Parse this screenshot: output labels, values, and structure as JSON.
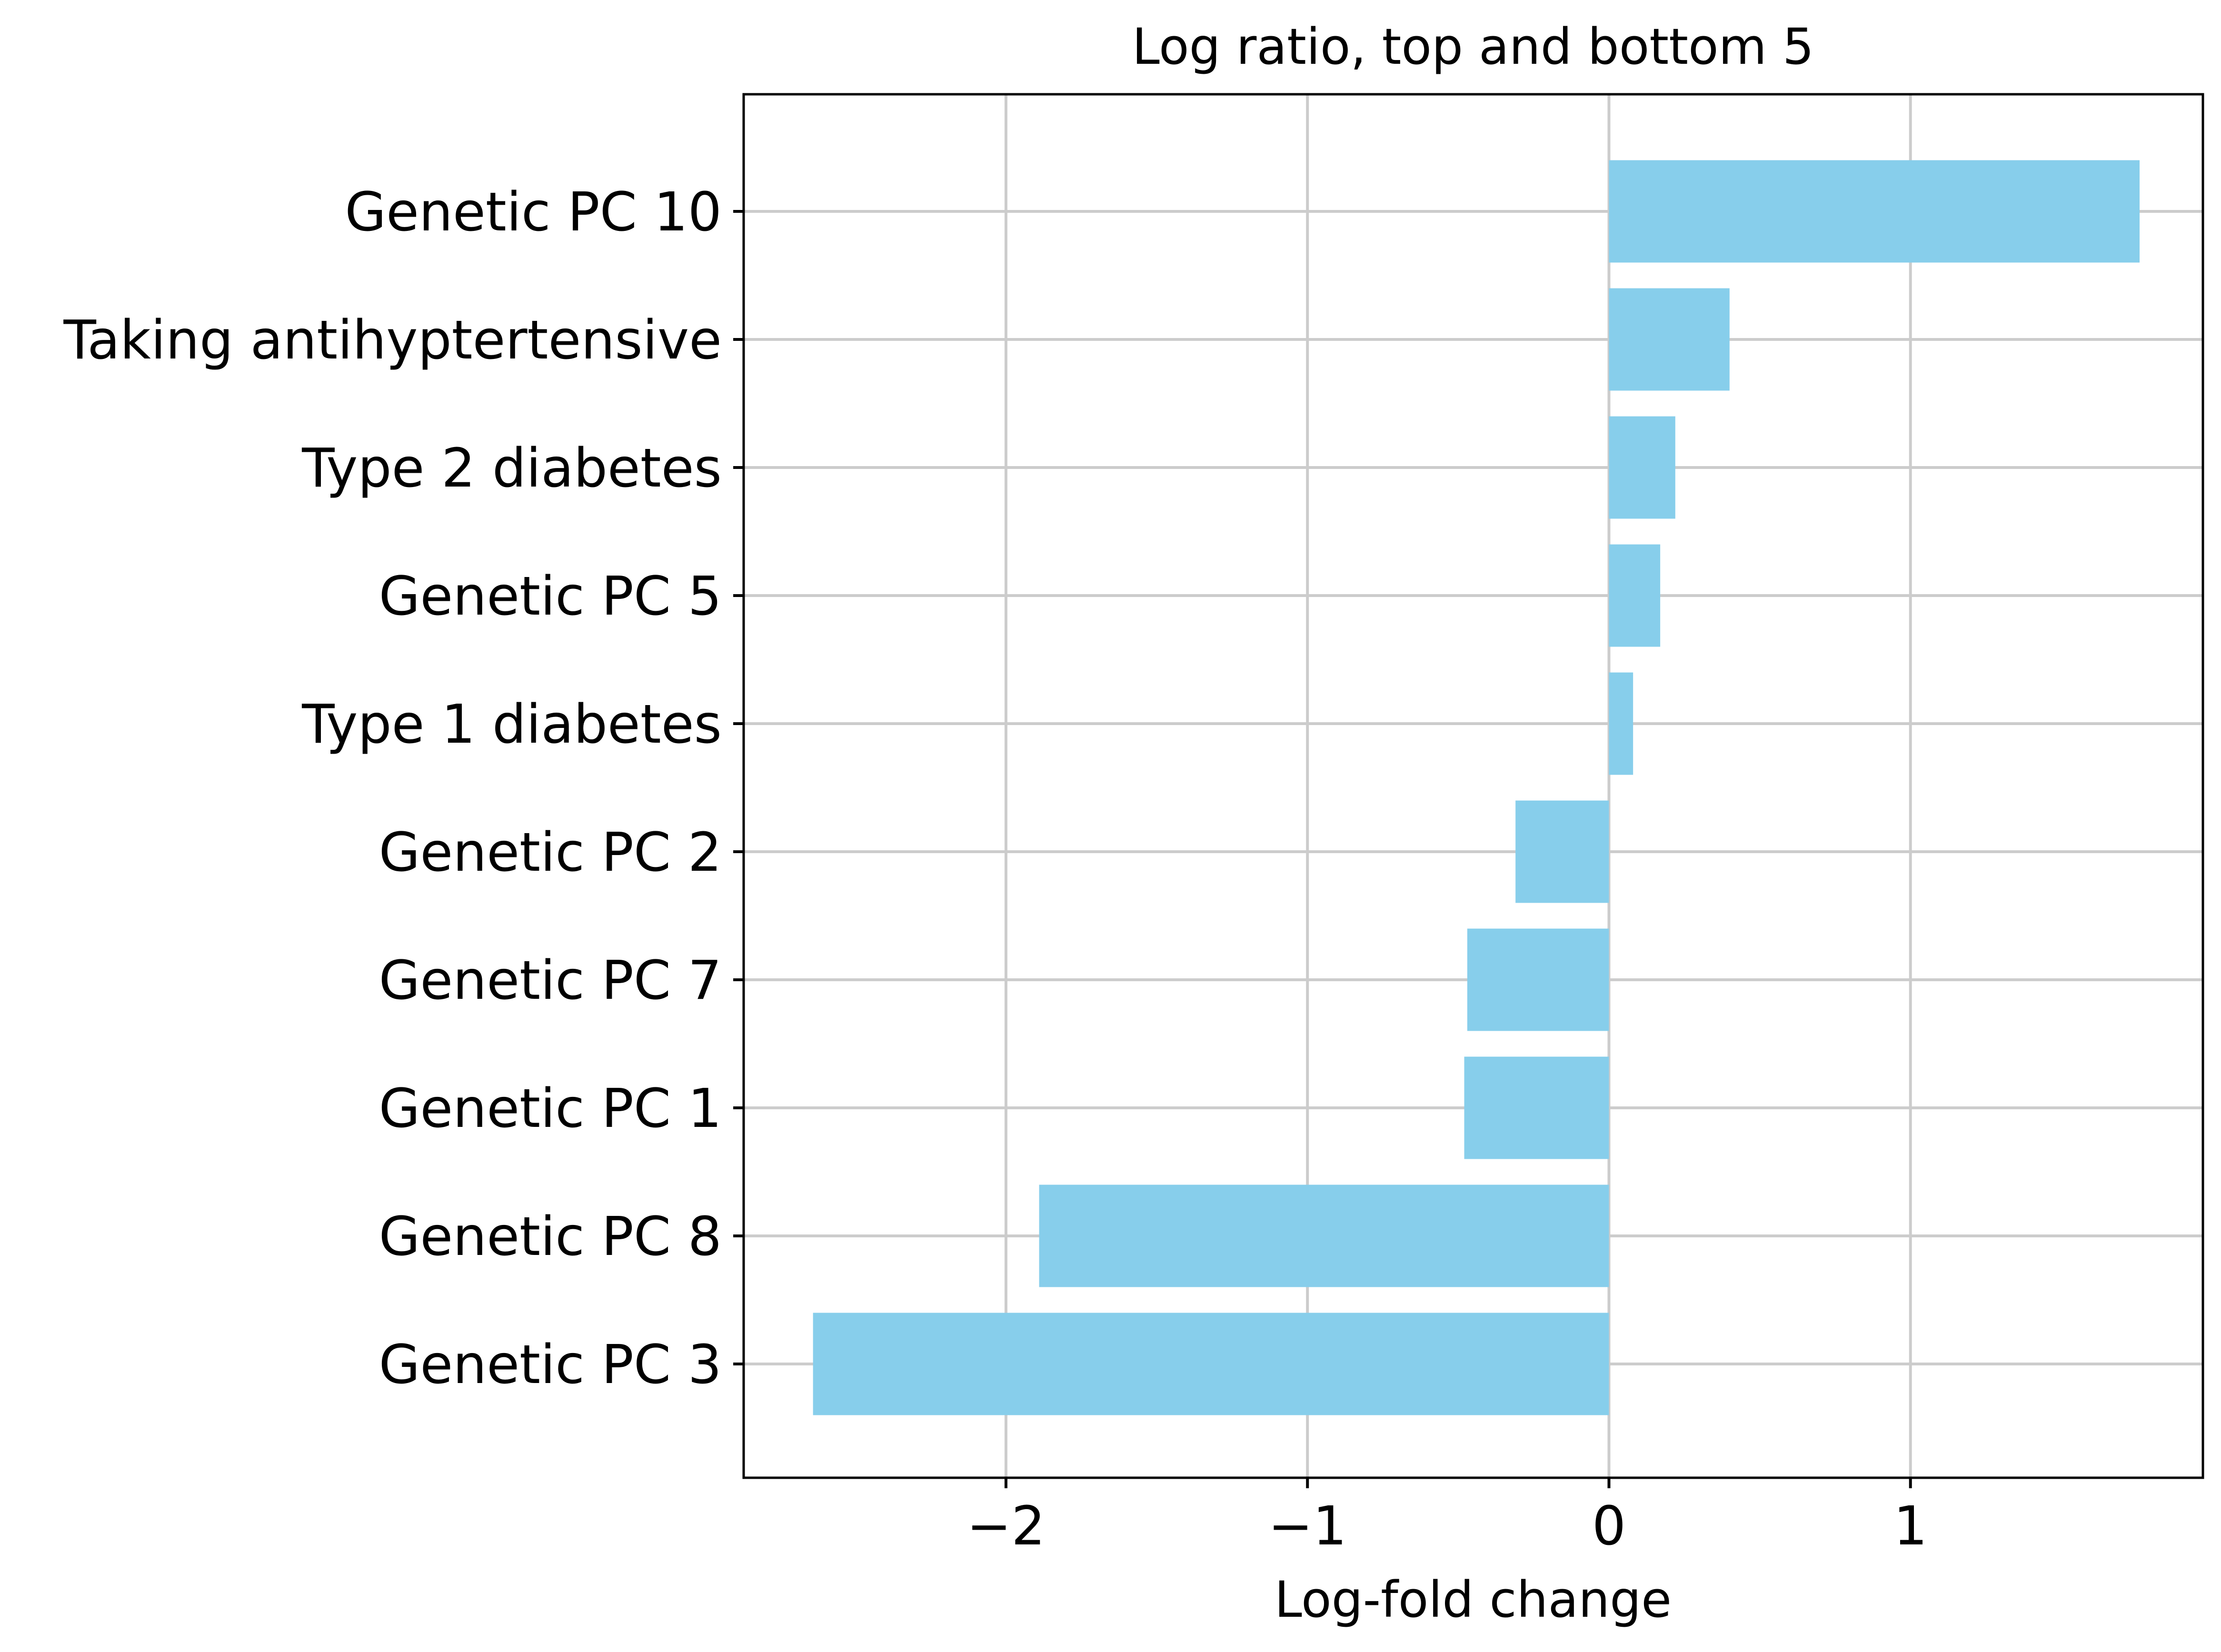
{
  "chart_data": {
    "type": "bar",
    "orientation": "horizontal",
    "title": "Log ratio, top and bottom 5",
    "xlabel": "Log-fold change",
    "ylabel": "",
    "categories": [
      "Genetic PC 10",
      "Taking antihyptertensive",
      "Type 2 diabetes",
      "Genetic PC 5",
      "Type 1 diabetes",
      "Genetic PC 2",
      "Genetic PC 7",
      "Genetic PC 1",
      "Genetic PC 8",
      "Genetic PC 3"
    ],
    "values": [
      1.76,
      0.4,
      0.22,
      0.17,
      0.08,
      -0.31,
      -0.47,
      -0.48,
      -1.89,
      -2.64
    ],
    "xlim": [
      -2.87,
      1.97
    ],
    "xticks": [
      -2,
      -1,
      0,
      1
    ],
    "xtick_labels": [
      "−2",
      "−1",
      "0",
      "1"
    ],
    "grid": true,
    "bar_color": "#87ceeb",
    "grid_color": "#cccccc"
  }
}
